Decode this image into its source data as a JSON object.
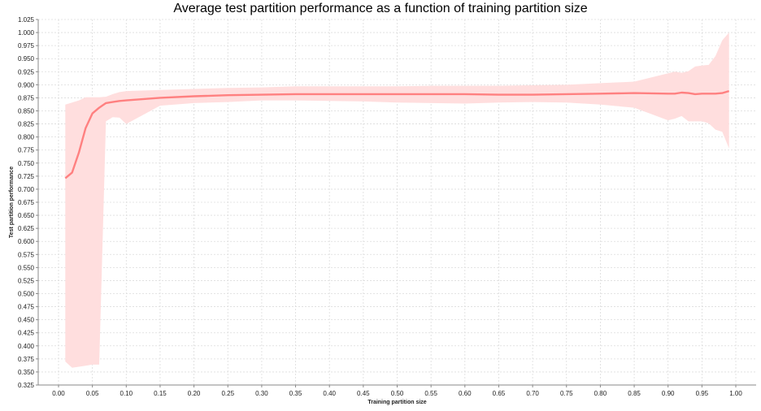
{
  "chart_data": {
    "type": "line",
    "title": "Average test partition performance as a function of training partition size",
    "xlabel": "Training partition size",
    "ylabel": "Test partition performance",
    "xlim": [
      -0.03,
      1.03
    ],
    "ylim": [
      0.325,
      1.025
    ],
    "x_ticks": [
      "0.00",
      "0.05",
      "0.10",
      "0.15",
      "0.20",
      "0.25",
      "0.30",
      "0.35",
      "0.40",
      "0.45",
      "0.50",
      "0.55",
      "0.60",
      "0.65",
      "0.70",
      "0.75",
      "0.80",
      "0.85",
      "0.90",
      "0.95",
      "1.00"
    ],
    "y_ticks": [
      "0.325",
      "0.350",
      "0.375",
      "0.400",
      "0.425",
      "0.450",
      "0.475",
      "0.500",
      "0.525",
      "0.550",
      "0.575",
      "0.600",
      "0.625",
      "0.650",
      "0.675",
      "0.700",
      "0.725",
      "0.750",
      "0.775",
      "0.800",
      "0.825",
      "0.850",
      "0.875",
      "0.900",
      "0.925",
      "0.950",
      "0.975",
      "1.000",
      "1.025"
    ],
    "grid": true,
    "line_color": "#ff8080",
    "band_color": "#ffdede",
    "series": [
      {
        "x": [
          0.01,
          0.02,
          0.03,
          0.04,
          0.05,
          0.06,
          0.07,
          0.08,
          0.09,
          0.1,
          0.15,
          0.2,
          0.25,
          0.3,
          0.35,
          0.4,
          0.45,
          0.5,
          0.55,
          0.6,
          0.65,
          0.7,
          0.75,
          0.8,
          0.85,
          0.9,
          0.91,
          0.92,
          0.93,
          0.94,
          0.95,
          0.96,
          0.97,
          0.98,
          0.99
        ],
        "mean": [
          0.721,
          0.732,
          0.77,
          0.817,
          0.845,
          0.856,
          0.865,
          0.867,
          0.869,
          0.87,
          0.875,
          0.878,
          0.88,
          0.881,
          0.882,
          0.882,
          0.882,
          0.882,
          0.882,
          0.882,
          0.881,
          0.881,
          0.882,
          0.883,
          0.884,
          0.883,
          0.883,
          0.885,
          0.884,
          0.882,
          0.883,
          0.883,
          0.883,
          0.884,
          0.888
        ],
        "lower": [
          0.37,
          0.358,
          0.36,
          0.362,
          0.364,
          0.364,
          0.83,
          0.838,
          0.837,
          0.825,
          0.86,
          0.865,
          0.867,
          0.87,
          0.87,
          0.869,
          0.868,
          0.866,
          0.865,
          0.864,
          0.866,
          0.867,
          0.866,
          0.862,
          0.856,
          0.832,
          0.835,
          0.84,
          0.83,
          0.83,
          0.83,
          0.826,
          0.814,
          0.81,
          0.778
        ],
        "upper": [
          0.862,
          0.866,
          0.87,
          0.876,
          0.876,
          0.876,
          0.877,
          0.882,
          0.886,
          0.888,
          0.89,
          0.892,
          0.894,
          0.895,
          0.897,
          0.897,
          0.897,
          0.897,
          0.898,
          0.898,
          0.898,
          0.899,
          0.9,
          0.903,
          0.906,
          0.922,
          0.925,
          0.923,
          0.926,
          0.935,
          0.937,
          0.938,
          0.955,
          0.985,
          1.0
        ]
      }
    ]
  }
}
